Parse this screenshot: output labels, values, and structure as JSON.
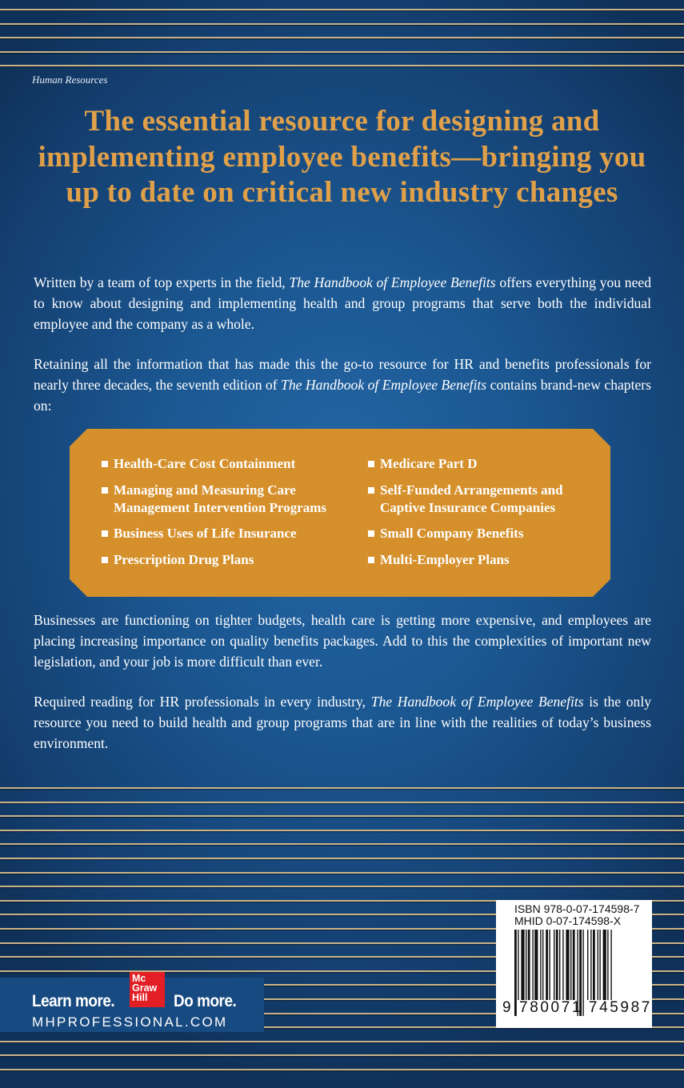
{
  "category": "Human Resources",
  "headline": "The essential resource for designing and implementing employee benefits—bringing you up to date on critical new industry changes",
  "paragraphs": [
    {
      "before": "Written by a team of top experts in the field, ",
      "title": "The Handbook of Employee Benefits",
      "after": " offers everything you need to know about designing and implementing health and group programs that serve both the individual employee and the company as a whole."
    },
    {
      "before": "Retaining all the information that has made this the go-to resource for HR and benefits professionals for nearly three decades, the seventh edition of ",
      "title": "The Handbook of Employee Benefits",
      "after": " contains brand-new chapters on:"
    },
    {
      "before": "Businesses are functioning on tighter budgets, health care is getting more expensive, and employees are placing increasing importance on quality benefits packages. Add to this the complexities of important new legislation, and your job is more difficult than ever.",
      "title": "",
      "after": ""
    },
    {
      "before": "Required reading for HR professionals in every industry, ",
      "title": "The Handbook of Employee Benefits",
      "after": "  is the only resource you need to build health and group programs that are in line with the realities of today’s business environment."
    }
  ],
  "chapters_left": [
    "Health-Care Cost Containment",
    "Managing and Measuring Care Management Intervention Programs",
    "Business Uses of Life Insurance",
    "Prescription Drug Plans"
  ],
  "chapters_right": [
    "Medicare Part D",
    "Self-Funded Arrangements and Captive Insurance Companies",
    "Small Company Benefits",
    "Multi-Employer Plans"
  ],
  "publisher": {
    "tagline_left": "Learn more.",
    "tagline_right": "Do more.",
    "logo_text": "Mc Graw Hill",
    "website": "MHPROFESSIONAL.COM"
  },
  "barcode": {
    "isbn": "ISBN 978-0-07-174598-7",
    "mhid": "MHID 0-07-174598-X",
    "digits": "9 780071 745987"
  },
  "colors": {
    "background": "#1b5791",
    "accent": "#e0a04a",
    "box": "#d5902c",
    "logo": "#e31e24"
  }
}
